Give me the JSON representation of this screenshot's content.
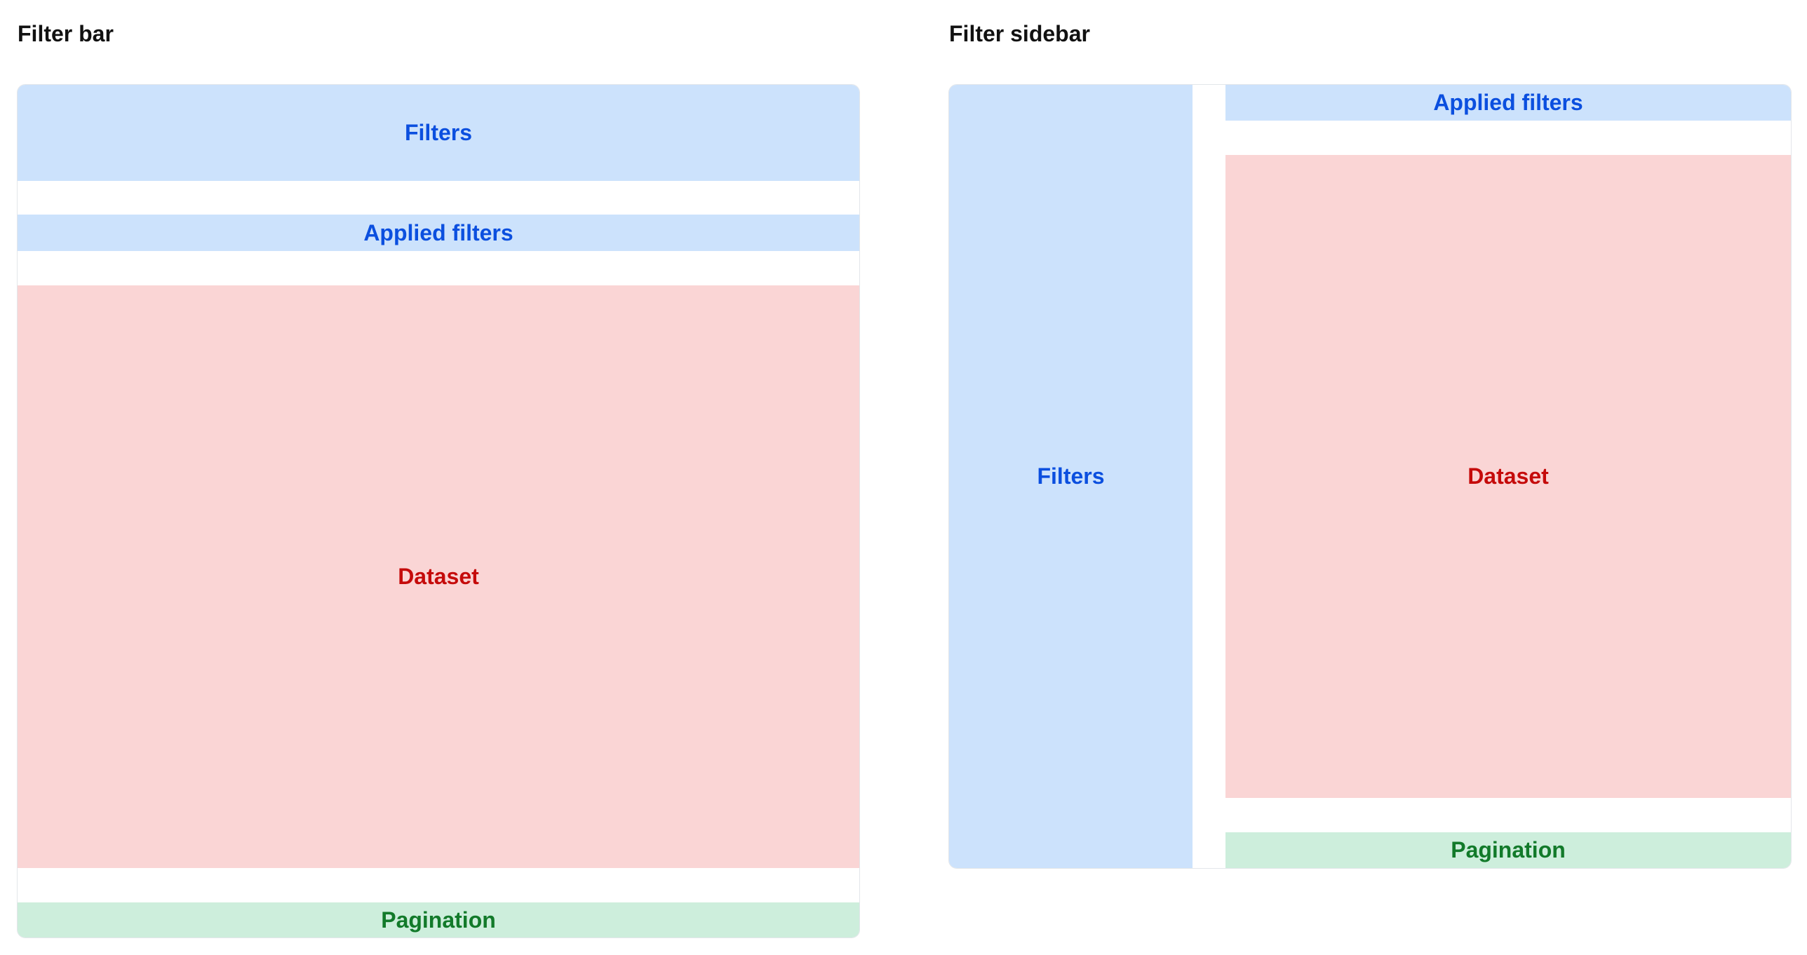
{
  "filter_bar": {
    "heading": "Filter bar",
    "filters": "Filters",
    "applied_filters": "Applied filters",
    "dataset": "Dataset",
    "pagination": "Pagination"
  },
  "filter_sidebar": {
    "heading": "Filter sidebar",
    "filters": "Filters",
    "applied_filters": "Applied filters",
    "dataset": "Dataset",
    "pagination": "Pagination"
  },
  "colors": {
    "filters_bg": "#cce2fc",
    "filters_text": "#0b4fdf",
    "dataset_bg": "#fad5d5",
    "dataset_text": "#c50b0b",
    "pagination_bg": "#cdeedc",
    "pagination_text": "#127a2a"
  }
}
